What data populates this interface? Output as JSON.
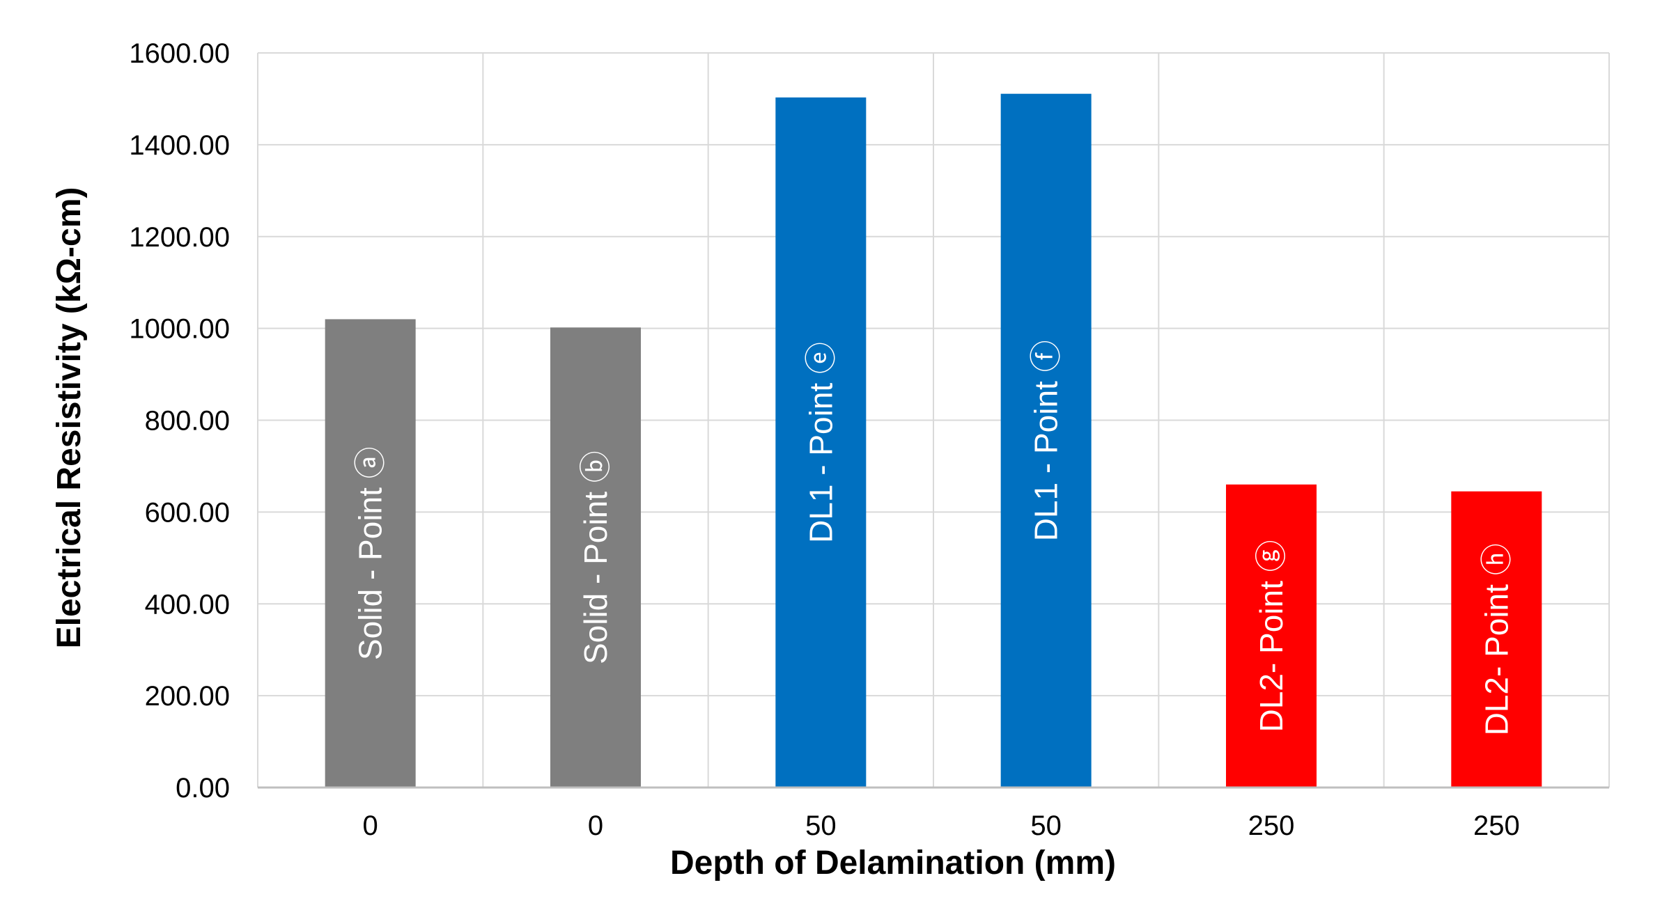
{
  "chart_data": {
    "type": "bar",
    "title": "",
    "xlabel": "Depth of Delamination (mm)",
    "ylabel": "Electrical Resistivity (kΩ-cm)",
    "ylim": [
      0,
      1600
    ],
    "y_ticks": [
      "0.00",
      "200.00",
      "400.00",
      "600.00",
      "800.00",
      "1000.00",
      "1200.00",
      "1400.00",
      "1600.00"
    ],
    "grid": true,
    "categories": [
      "0",
      "0",
      "50",
      "50",
      "250",
      "250"
    ],
    "values": [
      1020,
      1002,
      1503,
      1511,
      660,
      645
    ],
    "bar_labels": [
      "Solid - Point ⓐ",
      "Solid - Point ⓑ",
      "DL1 - Point ⓔ",
      "DL1 - Point ⓕ",
      "DL2- Point ⓖ",
      "DL2- Point ⓗ"
    ],
    "colors": [
      "#7f7f7f",
      "#7f7f7f",
      "#0070c0",
      "#0070c0",
      "#ff0000",
      "#ff0000"
    ]
  }
}
